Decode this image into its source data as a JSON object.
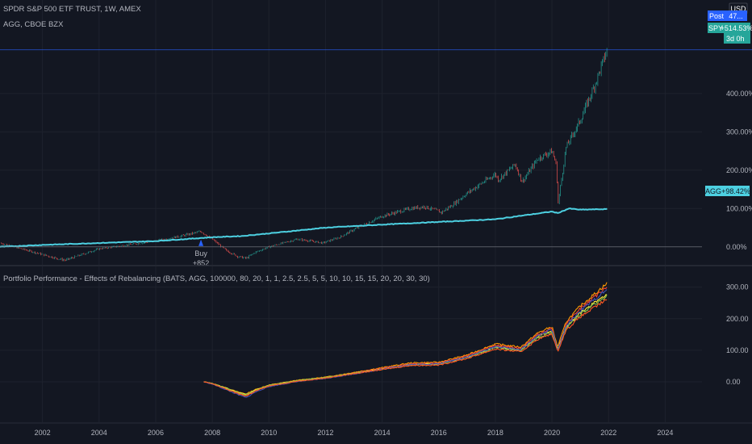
{
  "header": {
    "main_title": "SPDR S&P 500 ETF TRUST, 1W, AMEX",
    "compare_title": "AGG, CBOE BZX",
    "indicator_title": "Portfolio Performance - Effects of Rebalancing (BATS, AGG, 100000, 80, 20, 1, 1, 2.5, 2.5, 5, 5, 10, 10, 15, 15, 20, 20, 30, 30)"
  },
  "price_axis": {
    "currency": "USD",
    "post_label": "Post",
    "post_value": "47...",
    "spy_label": "SPY",
    "spy_value": "+514.53%",
    "countdown": "3d 0h",
    "agg_label": "AGG",
    "agg_value": "+98.42%"
  },
  "trade_marker": {
    "label": "Buy",
    "qty": "+852"
  },
  "colors": {
    "background": "#131722",
    "grid": "#1e222d",
    "agg_line": "#4dd0e1",
    "spy_up": "#26a69a",
    "spy_down": "#ef5350",
    "spy_tag": "#26a69a",
    "post_tag": "#2962ff",
    "buy_marker": "#2962ff",
    "indicator_series": [
      "#ff9800",
      "#f44336",
      "#ffeb3b",
      "#8bc34a",
      "#3f51b5",
      "#ff5722"
    ]
  },
  "chart_data": [
    {
      "type": "line",
      "title": "SPDR S&P 500 ETF TRUST, 1W, AMEX",
      "y_unit": "%",
      "x_ticks": [
        "2002",
        "2004",
        "2006",
        "2008",
        "2010",
        "2012",
        "2014",
        "2016",
        "2018",
        "2020",
        "2022",
        "2024"
      ],
      "y_ticks": [
        "400.00%",
        "300.00%",
        "200.00%",
        "100.00%",
        "0.00%"
      ],
      "xlim": [
        2000.5,
        2025.3
      ],
      "ylim": [
        -30,
        560
      ],
      "series": [
        {
          "name": "SPY",
          "style": "candles",
          "x": [
            2000.5,
            2001.0,
            2001.5,
            2002.0,
            2002.5,
            2002.8,
            2003.2,
            2004.0,
            2005.0,
            2006.0,
            2007.0,
            2007.6,
            2008.0,
            2008.5,
            2008.9,
            2009.2,
            2009.5,
            2010.0,
            2010.5,
            2011.0,
            2011.5,
            2011.9,
            2012.5,
            2013.0,
            2014.0,
            2015.0,
            2015.5,
            2016.1,
            2016.5,
            2017.0,
            2018.0,
            2018.1,
            2018.7,
            2018.95,
            2019.5,
            2020.0,
            2020.15,
            2020.22,
            2020.5,
            2021.0,
            2021.5,
            2021.95
          ],
          "values": [
            10,
            0,
            -10,
            -20,
            -30,
            -35,
            -25,
            -5,
            5,
            15,
            30,
            40,
            20,
            -10,
            -25,
            -30,
            -15,
            0,
            10,
            20,
            15,
            10,
            25,
            45,
            80,
            100,
            105,
            90,
            110,
            140,
            190,
            175,
            215,
            170,
            230,
            250,
            215,
            115,
            260,
            330,
            420,
            514.53
          ]
        },
        {
          "name": "AGG",
          "style": "line",
          "x": [
            2000.5,
            2002.0,
            2004.0,
            2006.0,
            2008.0,
            2009.0,
            2010.0,
            2012.0,
            2014.0,
            2016.0,
            2018.0,
            2019.0,
            2020.0,
            2020.2,
            2020.6,
            2021.0,
            2021.95
          ],
          "values": [
            0,
            5,
            10,
            15,
            25,
            28,
            35,
            50,
            58,
            65,
            72,
            82,
            92,
            88,
            100,
            97,
            98.42
          ]
        }
      ]
    },
    {
      "type": "line",
      "title": "Portfolio Performance - Effects of Rebalancing (BATS, AGG, 100000, 80, 20, 1, 1, 2.5, 2.5, 5, 5, 10, 10, 15, 15, 20, 20, 30, 30)",
      "x_ticks": [
        "2002",
        "2004",
        "2006",
        "2008",
        "2010",
        "2012",
        "2014",
        "2016",
        "2018",
        "2020",
        "2022",
        "2024"
      ],
      "y_ticks": [
        "300.00",
        "200.00",
        "100.00",
        "0.00"
      ],
      "xlim": [
        2000.5,
        2025.3
      ],
      "ylim": [
        -120,
        340
      ],
      "x": [
        2007.7,
        2008.0,
        2008.5,
        2008.9,
        2009.2,
        2009.5,
        2010.0,
        2011.0,
        2012.0,
        2013.0,
        2014.0,
        2015.0,
        2016.0,
        2017.0,
        2018.0,
        2018.9,
        2019.5,
        2020.0,
        2020.2,
        2020.5,
        2021.0,
        2021.95
      ],
      "series": [
        {
          "values": [
            0,
            -5,
            -20,
            -32,
            -38,
            -25,
            -10,
            5,
            15,
            30,
            45,
            60,
            62,
            85,
            120,
            110,
            155,
            175,
            110,
            190,
            240,
            312
          ]
        },
        {
          "values": [
            0,
            -6,
            -22,
            -35,
            -42,
            -28,
            -12,
            3,
            13,
            28,
            43,
            57,
            59,
            82,
            116,
            105,
            150,
            170,
            100,
            183,
            232,
            300
          ]
        },
        {
          "values": [
            0,
            -5,
            -20,
            -33,
            -40,
            -27,
            -11,
            4,
            14,
            27,
            41,
            55,
            57,
            78,
            110,
            101,
            143,
            162,
            104,
            174,
            218,
            280
          ]
        },
        {
          "values": [
            0,
            -5,
            -21,
            -34,
            -41,
            -27,
            -11,
            4,
            14,
            27,
            40,
            54,
            56,
            77,
            108,
            99,
            140,
            158,
            102,
            170,
            214,
            272
          ]
        },
        {
          "values": [
            0,
            -7,
            -25,
            -40,
            -50,
            -33,
            -15,
            1,
            11,
            25,
            40,
            55,
            57,
            79,
            112,
            102,
            146,
            166,
            98,
            177,
            225,
            292
          ]
        },
        {
          "values": [
            0,
            -6,
            -23,
            -37,
            -45,
            -30,
            -13,
            2,
            12,
            26,
            39,
            52,
            53,
            74,
            104,
            95,
            135,
            152,
            96,
            164,
            206,
            262
          ]
        }
      ]
    }
  ]
}
